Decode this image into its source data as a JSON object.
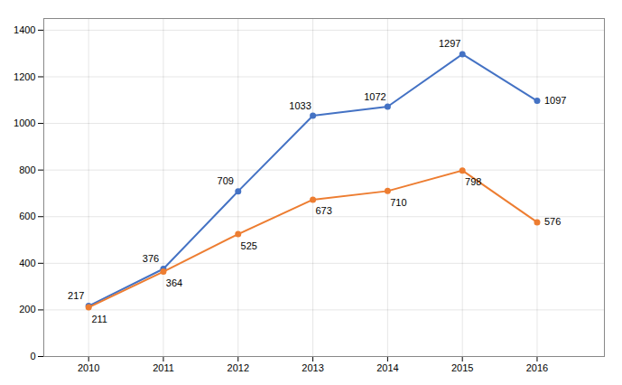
{
  "chart_data": {
    "type": "line",
    "x": [
      2010,
      2011,
      2012,
      2013,
      2014,
      2015,
      2016
    ],
    "series": [
      {
        "color": "#4472C4",
        "values": [
          217,
          376,
          709,
          1033,
          1072,
          1297,
          1097
        ]
      },
      {
        "color": "#ED7D31",
        "values": [
          211,
          364,
          525,
          673,
          710,
          798,
          576
        ]
      }
    ],
    "xlim": [
      2009.4,
      2016.9
    ],
    "xticks": [
      2010,
      2011,
      2012,
      2013,
      2014,
      2015,
      2016
    ],
    "ylim": [
      0,
      1450
    ],
    "yticks": [
      0,
      200,
      400,
      600,
      800,
      1000,
      1200,
      1400
    ],
    "grid": true,
    "data_labels": true,
    "marker": "circle"
  }
}
